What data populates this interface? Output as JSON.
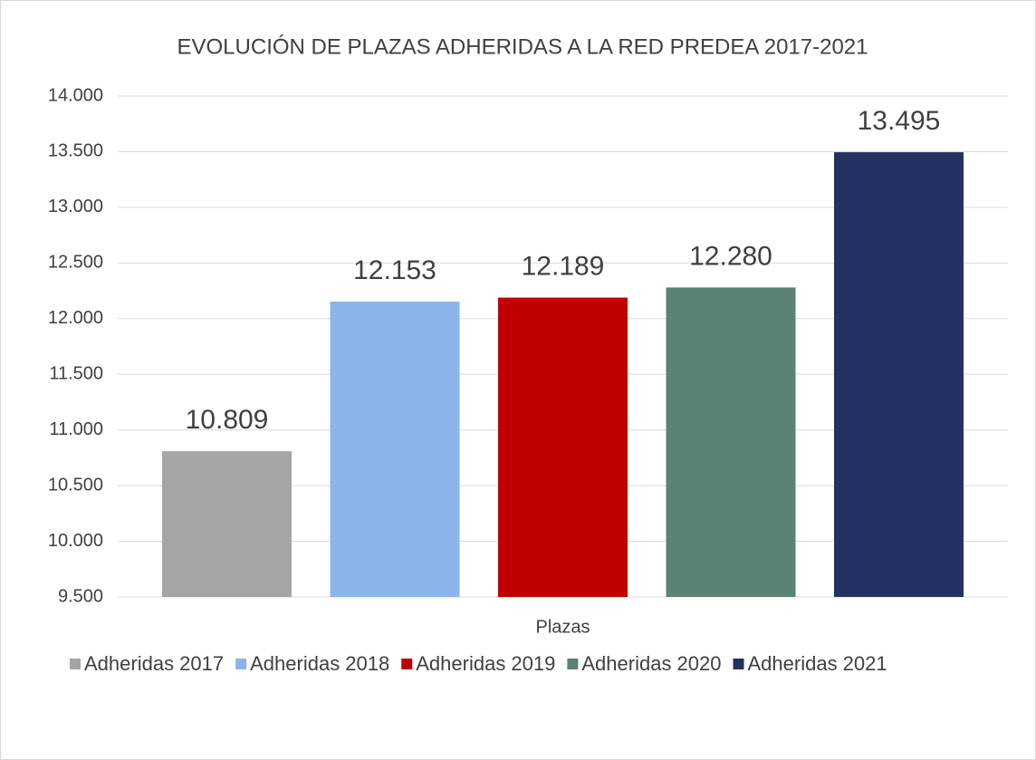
{
  "chart_data": {
    "type": "bar",
    "title": "EVOLUCIÓN DE PLAZAS ADHERIDAS A LA RED PREDEA 2017-2021",
    "categories": [
      "Plazas"
    ],
    "series": [
      {
        "name": "Adheridas 2017",
        "color": "#a5a5a5",
        "values": [
          10809
        ],
        "value_labels": [
          "10.809"
        ]
      },
      {
        "name": "Adheridas 2018",
        "color": "#8ab4ea",
        "values": [
          12153
        ],
        "value_labels": [
          "12.153"
        ]
      },
      {
        "name": "Adheridas 2019",
        "color": "#c00000",
        "values": [
          12189
        ],
        "value_labels": [
          "12.189"
        ]
      },
      {
        "name": "Adheridas 2020",
        "color": "#5b8372",
        "values": [
          12280
        ],
        "value_labels": [
          "12.280"
        ]
      },
      {
        "name": "Adheridas 2021",
        "color": "#233263",
        "values": [
          13495
        ],
        "value_labels": [
          "13.495"
        ]
      }
    ],
    "ylim": [
      9500,
      14000
    ],
    "yticks": [
      {
        "value": 9500,
        "label": "9.500"
      },
      {
        "value": 10000,
        "label": "10.000"
      },
      {
        "value": 10500,
        "label": "10.500"
      },
      {
        "value": 11000,
        "label": "11.000"
      },
      {
        "value": 11500,
        "label": "11.500"
      },
      {
        "value": 12000,
        "label": "12.000"
      },
      {
        "value": 12500,
        "label": "12.500"
      },
      {
        "value": 13000,
        "label": "13.000"
      },
      {
        "value": 13500,
        "label": "13.500"
      },
      {
        "value": 14000,
        "label": "14.000"
      }
    ],
    "grid": true,
    "legend": "bottom"
  }
}
